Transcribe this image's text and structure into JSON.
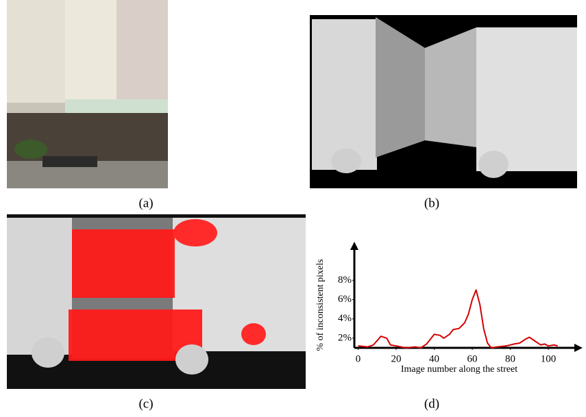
{
  "captions": [
    "(a)",
    "(b)",
    "(c)",
    "(d)"
  ],
  "chart_data": {
    "type": "line",
    "x_label": "Image number along the street",
    "y_label": "% of inconsistent pixels",
    "x": [
      0,
      5,
      8,
      12,
      15,
      17,
      20,
      25,
      30,
      33,
      36,
      40,
      43,
      45,
      48,
      50,
      53,
      56,
      58,
      60,
      62,
      64,
      66,
      68,
      70,
      73,
      78,
      82,
      85,
      88,
      90,
      93,
      96,
      98,
      100,
      103,
      105
    ],
    "series": [
      {
        "color": "#d40000",
        "values": [
          1.2,
          1.1,
          1.3,
          2.2,
          2.0,
          1.3,
          1.2,
          1.0,
          1.1,
          1.0,
          1.4,
          2.4,
          2.3,
          2.0,
          2.4,
          2.9,
          3.0,
          3.6,
          4.5,
          6.0,
          7.0,
          5.5,
          3.0,
          1.5,
          1.0,
          1.1,
          1.2,
          1.4,
          1.5,
          1.9,
          2.1,
          1.7,
          1.3,
          1.4,
          1.2,
          1.3,
          1.2
        ]
      }
    ],
    "xlim": [
      -2,
      118
    ],
    "ylim": [
      1,
      12
    ],
    "xticks": [
      0,
      20,
      40,
      60,
      80,
      100
    ],
    "yticks": [
      {
        "value": 2,
        "label": "2%"
      },
      {
        "value": 4,
        "label": "4%"
      },
      {
        "value": 6,
        "label": "6%"
      },
      {
        "value": 8,
        "label": "8%"
      }
    ]
  }
}
